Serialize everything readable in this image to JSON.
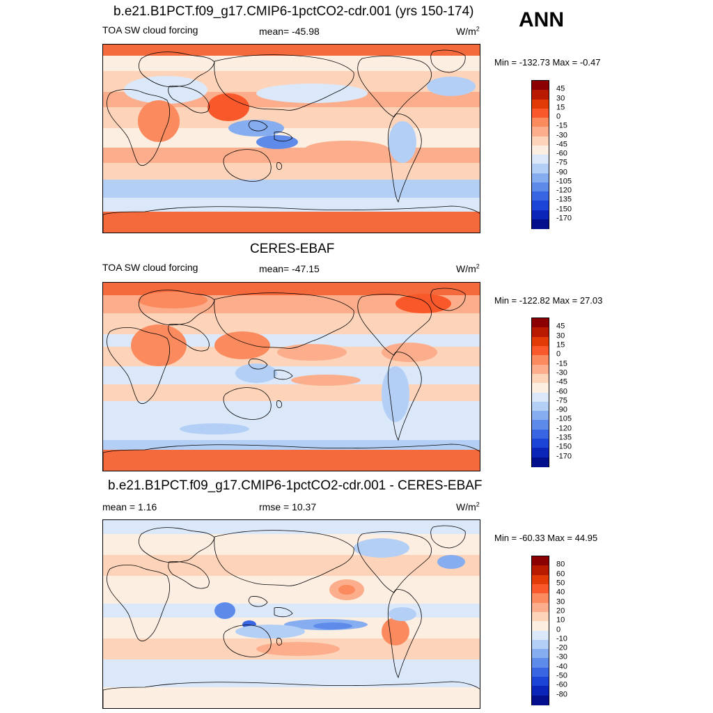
{
  "season": "ANN",
  "panels": [
    {
      "title": "b.e21.B1PCT.f09_g17.CMIP6-1pctCO2-cdr.001 (yrs 150-174)",
      "left_label": "TOA SW cloud forcing",
      "center_label": "mean= -45.98",
      "units_base": "W/m",
      "units_exp": "2",
      "minmax": "Min = -132.73 Max =  -0.47",
      "colorbar": {
        "labels": [
          "45",
          "30",
          "15",
          "0",
          "-15",
          "-30",
          "-45",
          "-60",
          "-75",
          "-90",
          "-105",
          "-120",
          "-135",
          "-150",
          "-170"
        ],
        "colors": [
          "#8b0000",
          "#b81a00",
          "#e33b08",
          "#f9582a",
          "#fb8b5e",
          "#fcae8c",
          "#fdd3b9",
          "#fdeee2",
          "#dbe8fa",
          "#b4cff6",
          "#86adf0",
          "#5e8bea",
          "#3866e2",
          "#1c44d6",
          "#0b25b8",
          "#030e8c"
        ]
      },
      "map": {
        "style": "model"
      }
    },
    {
      "title": "CERES-EBAF",
      "left_label": "TOA SW cloud forcing",
      "center_label": "mean= -47.15",
      "units_base": "W/m",
      "units_exp": "2",
      "minmax": "Min = -122.82 Max =  27.03",
      "colorbar": {
        "labels": [
          "45",
          "30",
          "15",
          "0",
          "-15",
          "-30",
          "-45",
          "-60",
          "-75",
          "-90",
          "-105",
          "-120",
          "-135",
          "-150",
          "-170"
        ],
        "colors": [
          "#8b0000",
          "#b81a00",
          "#e33b08",
          "#f9582a",
          "#fb8b5e",
          "#fcae8c",
          "#fdd3b9",
          "#fdeee2",
          "#dbe8fa",
          "#b4cff6",
          "#86adf0",
          "#5e8bea",
          "#3866e2",
          "#1c44d6",
          "#0b25b8",
          "#030e8c"
        ]
      },
      "map": {
        "style": "obs"
      }
    },
    {
      "title": "b.e21.B1PCT.f09_g17.CMIP6-1pctCO2-cdr.001 - CERES-EBAF",
      "left_label": "mean =   1.16",
      "center_label": "rmse =  10.37",
      "units_base": "W/m",
      "units_exp": "2",
      "minmax": "Min = -60.33 Max =  44.95",
      "colorbar": {
        "labels": [
          "80",
          "60",
          "50",
          "40",
          "30",
          "20",
          "10",
          "0",
          "-10",
          "-20",
          "-30",
          "-40",
          "-50",
          "-60",
          "-80"
        ],
        "colors": [
          "#8b0000",
          "#b81a00",
          "#e33b08",
          "#f9582a",
          "#fb8b5e",
          "#fcae8c",
          "#fdd3b9",
          "#fdeee2",
          "#dbe8fa",
          "#b4cff6",
          "#86adf0",
          "#5e8bea",
          "#3866e2",
          "#1c44d6",
          "#0b25b8",
          "#030e8c"
        ]
      },
      "map": {
        "style": "diff"
      }
    }
  ]
}
